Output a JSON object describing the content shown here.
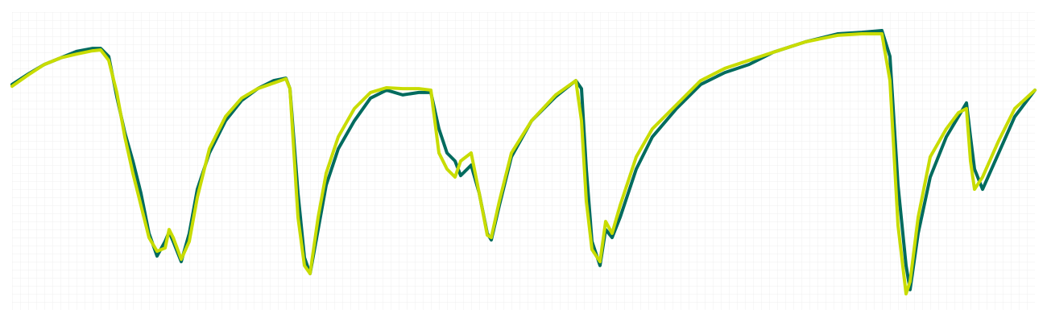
{
  "chart_data": {
    "type": "line",
    "grid": true,
    "xlim": [
      0,
      1270
    ],
    "ylim": [
      0,
      100
    ],
    "x": [
      0,
      20,
      40,
      60,
      80,
      100,
      110,
      120,
      130,
      140,
      150,
      160,
      170,
      180,
      190,
      195,
      200,
      210,
      220,
      230,
      245,
      265,
      285,
      305,
      325,
      340,
      345,
      355,
      363,
      370,
      380,
      390,
      405,
      425,
      445,
      465,
      485,
      505,
      520,
      530,
      540,
      550,
      557,
      570,
      580,
      590,
      595,
      605,
      620,
      645,
      675,
      700,
      707,
      713,
      720,
      730,
      737,
      745,
      755,
      775,
      795,
      825,
      855,
      885,
      915,
      945,
      985,
      1025,
      1055,
      1080,
      1090,
      1100,
      1110,
      1115,
      1125,
      1140,
      1160,
      1175,
      1185,
      1190,
      1195,
      1205,
      1225,
      1245,
      1270
    ],
    "series": [
      {
        "color": "#006b5e",
        "values": [
          75.7,
          79.2,
          82.4,
          84.6,
          86.8,
          87.8,
          87.8,
          85.1,
          71.6,
          59.5,
          50.0,
          39.2,
          25.7,
          18.1,
          23.0,
          26.2,
          23.0,
          16.2,
          25.7,
          40.5,
          52.7,
          63.5,
          70.3,
          74.3,
          77.0,
          77.8,
          74.3,
          39.2,
          17.6,
          12.2,
          27.0,
          41.9,
          54.1,
          63.5,
          71.1,
          73.8,
          72.2,
          73.0,
          73.0,
          60.8,
          52.7,
          50.0,
          45.1,
          48.6,
          39.2,
          25.7,
          23.5,
          35.1,
          51.4,
          63.5,
          71.6,
          77.0,
          74.3,
          47.3,
          23.0,
          14.9,
          27.0,
          24.3,
          31.1,
          47.3,
          58.1,
          67.6,
          75.7,
          79.7,
          82.4,
          86.5,
          90.0,
          92.7,
          93.2,
          93.8,
          85.1,
          41.9,
          14.9,
          6.8,
          25.7,
          44.6,
          58.1,
          64.9,
          69.5,
          58.1,
          47.3,
          40.5,
          52.7,
          64.9,
          73.8
        ]
      },
      {
        "color": "#c8dc00",
        "values": [
          75.1,
          78.9,
          82.4,
          84.6,
          85.9,
          87.0,
          87.3,
          83.8,
          73.0,
          58.1,
          45.9,
          35.1,
          24.3,
          19.7,
          20.8,
          27.0,
          24.3,
          17.0,
          23.0,
          37.8,
          54.1,
          64.9,
          71.1,
          74.3,
          76.2,
          77.6,
          74.3,
          31.1,
          14.9,
          12.2,
          31.1,
          45.9,
          58.1,
          67.6,
          73.0,
          74.6,
          74.3,
          74.3,
          73.8,
          52.7,
          47.3,
          44.6,
          50.0,
          52.7,
          39.2,
          25.1,
          24.3,
          36.5,
          52.7,
          63.5,
          72.2,
          77.0,
          63.5,
          36.5,
          20.3,
          16.2,
          29.7,
          25.7,
          35.1,
          51.4,
          60.8,
          68.9,
          77.0,
          81.1,
          83.8,
          86.5,
          90.0,
          92.2,
          92.7,
          92.7,
          77.0,
          28.4,
          5.4,
          9.5,
          31.1,
          51.4,
          60.8,
          66.2,
          67.6,
          50.0,
          40.5,
          44.6,
          56.8,
          67.6,
          73.8
        ]
      }
    ]
  }
}
